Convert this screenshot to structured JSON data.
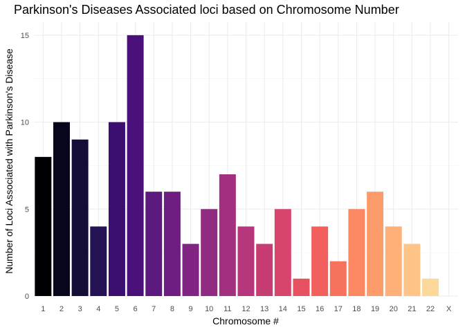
{
  "chart_data": {
    "type": "bar",
    "title": "Parkinson's Diseases Associated loci based on Chromosome Number",
    "xlabel": "Chromosome #",
    "ylabel": "Number of Loci Associated with Parkinson's Disease",
    "categories": [
      "1",
      "2",
      "3",
      "4",
      "5",
      "6",
      "7",
      "8",
      "9",
      "10",
      "11",
      "12",
      "13",
      "14",
      "15",
      "16",
      "17",
      "18",
      "19",
      "20",
      "21",
      "22",
      "X"
    ],
    "values": [
      8,
      10,
      9,
      4,
      10,
      15,
      6,
      6,
      3,
      5,
      7,
      4,
      3,
      5,
      1,
      4,
      2,
      5,
      6,
      4,
      3,
      1,
      0
    ],
    "colors": [
      "#000004",
      "#07061c",
      "#140e36",
      "#251255",
      "#3b0f70",
      "#4a1079",
      "#5c1a7f",
      "#6e1e81",
      "#802582",
      "#912b81",
      "#a3307e",
      "#b5367a",
      "#c73d73",
      "#d8456c",
      "#e75263",
      "#f1605d",
      "#f7725c",
      "#fb8861",
      "#fd9c6b",
      "#feb078",
      "#fec488",
      "#fdd89b",
      "#fcebaf"
    ],
    "ylim": [
      0,
      15.75
    ],
    "yticks": [
      0,
      5,
      10,
      15
    ],
    "grid": true,
    "legend": "none"
  }
}
